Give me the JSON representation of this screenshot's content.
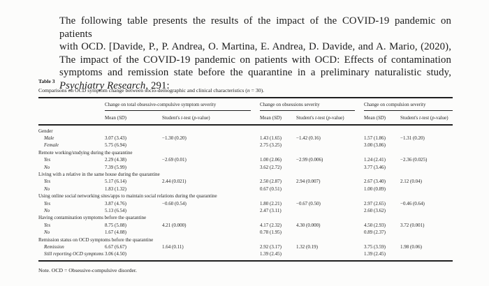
{
  "intro": {
    "lines": [
      "The following table presents the results of the impact of the COVID-19 pandemic on patients",
      "with OCD. [Davide, P., P. Andrea, O. Martina, E. Andrea, D. Davide, and A. Mario, (2020),",
      "The impact of the COVID-19 pandemic on patients with OCD: Effects of contamination",
      "symptoms and remission state before the quarantine in a preliminary naturalistic study,"
    ],
    "last_line_italic": "Psychiatry Research",
    "last_line_rest": ", 291:"
  },
  "table": {
    "label": "Table 3",
    "caption_prefix": "Comparisons on OCD symptom change between socio-demographic and clinical characteristics (",
    "caption_italic": "n",
    "caption_suffix": " = 30).",
    "col_groups": [
      "Change on total obsessive-compulsive symptom severity",
      "Change on obsessions severity",
      "Change on compulsion severity"
    ],
    "mean_header": {
      "pre": "Mean (",
      "italic": "SD",
      "post": ")"
    },
    "ttest_header": {
      "p1": "Student's ",
      "i1": "t",
      "p2": "-test (",
      "i2": "p",
      "p3": "-value)"
    },
    "rows": [
      {
        "type": "group",
        "label": "Gender",
        "cells": []
      },
      {
        "type": "sub",
        "label": "Male",
        "cells": [
          "3.07 (3.43)",
          "−1.30 (0.20)",
          "1.43 (1.65)",
          "−1.42 (0.16)",
          "1.57 (1.86)",
          "−1.31 (0.20)"
        ]
      },
      {
        "type": "sub",
        "label": "Female",
        "cells": [
          "5.75 (6.94)",
          "",
          "2.75 (3.25)",
          "",
          "3.00 (3.86)",
          ""
        ]
      },
      {
        "type": "group",
        "label": "Remote working/studying during the quarantine",
        "cells": []
      },
      {
        "type": "sub",
        "label": "Yes",
        "cells": [
          "2.29 (4.38)",
          "−2.69 (0.01)",
          "1.00 (2.06)",
          "−2.99 (0.006)",
          "1.24 (2.41)",
          "−2.36 (0.025)"
        ]
      },
      {
        "type": "sub",
        "label": "No",
        "cells": [
          "7.39 (5.99)",
          "",
          "3.62 (2.72)",
          "",
          "3.77 (3.46)",
          ""
        ]
      },
      {
        "type": "group",
        "label": "Living with a relative in the same house during the quarantine",
        "cells": []
      },
      {
        "type": "sub",
        "label": "Yes",
        "cells": [
          "5.17 (6.14)",
          "2.44 (0.021)",
          "2.50 (2.87)",
          "2.94 (0.007)",
          "2.67 (3.40)",
          "2.12 (0.04)"
        ]
      },
      {
        "type": "sub",
        "label": "No",
        "cells": [
          "1.83 (1.32)",
          "",
          "0.67 (0.51)",
          "",
          "1.00 (0.89)",
          ""
        ]
      },
      {
        "type": "group",
        "label": "Using online social networking sites/apps to maintain social relations during the quarantine",
        "cells": []
      },
      {
        "type": "sub",
        "label": "Yes",
        "cells": [
          "3.87 (4.76)",
          "−0.60 (0.54)",
          "1.80 (2.21)",
          "−0.67 (0.50)",
          "2.97 (2.65)",
          "−0.46 (0.64)"
        ]
      },
      {
        "type": "sub",
        "label": "No",
        "cells": [
          "5.13 (6.54)",
          "",
          "2.47 (3.11)",
          "",
          "2.60 (3.62)",
          ""
        ]
      },
      {
        "type": "group",
        "label": "Having contamination symptoms before the quarantine",
        "cells": []
      },
      {
        "type": "sub",
        "label": "Yes",
        "cells": [
          "8.75 (5.08)",
          "4.21 (0.000)",
          "4.17 (2.32)",
          "4.30 (0.000)",
          "4.50 (2.93)",
          "3.72 (0.001)"
        ]
      },
      {
        "type": "sub",
        "label": "No",
        "cells": [
          "1.67 (4.08)",
          "",
          "0.78 (1.95)",
          "",
          "0.89 (2.37)",
          ""
        ]
      },
      {
        "type": "group",
        "label": "Remission status on OCD symptoms before the quarantine",
        "cells": []
      },
      {
        "type": "sub",
        "label": "Remission",
        "cells": [
          "6.67 (6.67)",
          "1.64 (0.11)",
          "2.92 (3.17)",
          "1.32 (0.19)",
          "3.75 (3.59)",
          "1.98 (0.06)"
        ]
      },
      {
        "type": "sub",
        "label": "Still reporting OCD symptoms",
        "cells": [
          "3.06 (4.50)",
          "",
          "1.39 (2.45)",
          "",
          "1.39 (2.45)",
          ""
        ]
      }
    ],
    "note": "Note. OCD = Obsessive-compulsive disorder."
  }
}
